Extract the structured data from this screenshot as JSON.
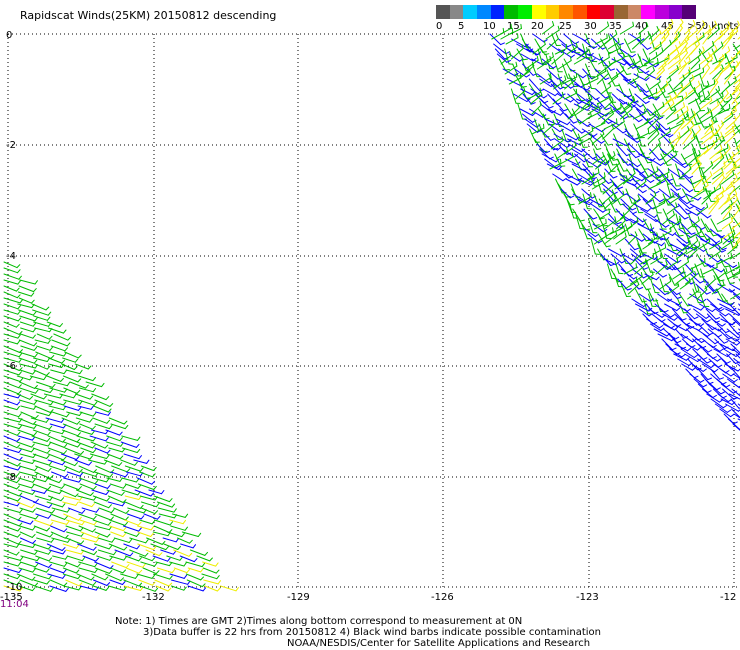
{
  "title": "Rapidscat Winds(25KM) 20150812 descending",
  "colorbar": {
    "colors": [
      "#555555",
      "#888888",
      "#00ccff",
      "#0088ff",
      "#0022ff",
      "#00bb00",
      "#00ee00",
      "#ffff00",
      "#ffcc00",
      "#ff8800",
      "#ff5500",
      "#ff0000",
      "#dd0033",
      "#996633",
      "#cc8866",
      "#ff00ff",
      "#bb00dd",
      "#8800cc",
      "#550077"
    ],
    "labels": [
      "0",
      "5",
      "10",
      "15",
      "20",
      "25",
      "30",
      "35",
      "40",
      "45",
      ">50 knots"
    ]
  },
  "map": {
    "lon_ticks": [
      "-135",
      "-132",
      "-129",
      "-126",
      "-123",
      "-12"
    ],
    "lat_ticks": [
      "0",
      "-2",
      "-4",
      "-6",
      "-8",
      "-10"
    ],
    "grid": "dotted",
    "barb_colors": {
      "blue": "#0000ff",
      "green": "#00bb00",
      "yellow": "#eeee00"
    }
  },
  "time_label": "11:04",
  "notes": [
    "Note: 1) Times are GMT 2)Times along bottom correspond to measurement at 0N",
    "3)Data buffer is 22 hrs from 20150812 4) Black wind barbs indicate possible contamination",
    "NOAA/NESDIS/Center for Satellite Applications and Research"
  ]
}
